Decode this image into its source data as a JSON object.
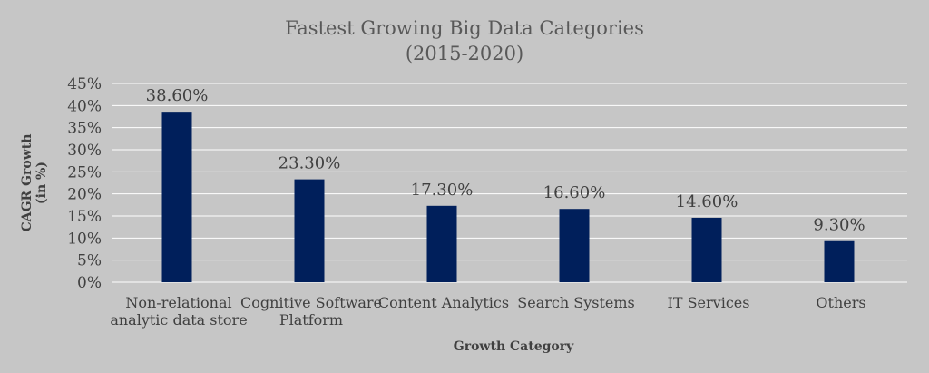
{
  "chart_data": {
    "type": "bar",
    "title": "Fastest Growing Big Data Categories",
    "subtitle": "(2015-2020)",
    "xlabel": "Growth Category",
    "ylabel": "CAGR Growth (in %)",
    "ylabel_lines": [
      "CAGR Growth",
      "(in %)"
    ],
    "categories": [
      "Non-relational analytic data store",
      "Cognitive Software Platform",
      "Content Analytics",
      "Search Systems",
      "IT Services",
      "Others"
    ],
    "category_lines": [
      [
        "Non-relational",
        "analytic data store"
      ],
      [
        "Cognitive Software",
        "Platform"
      ],
      [
        "Content Analytics"
      ],
      [
        "Search Systems"
      ],
      [
        "IT Services"
      ],
      [
        "Others"
      ]
    ],
    "values": [
      38.6,
      23.3,
      17.3,
      16.6,
      14.6,
      9.3
    ],
    "data_labels": [
      "38.60%",
      "23.30%",
      "17.30%",
      "16.60%",
      "14.60%",
      "9.30%"
    ],
    "ylim": [
      0,
      45
    ],
    "ytick_values": [
      0,
      5,
      10,
      15,
      20,
      25,
      30,
      35,
      40,
      45
    ],
    "ytick_labels": [
      "0%",
      "5%",
      "10%",
      "15%",
      "20%",
      "25%",
      "30%",
      "35%",
      "40%",
      "45%"
    ],
    "grid": true,
    "legend": "none",
    "colors": {
      "bar": "#001f5b",
      "background": "#c6c6c6",
      "grid": "#ffffff"
    }
  }
}
